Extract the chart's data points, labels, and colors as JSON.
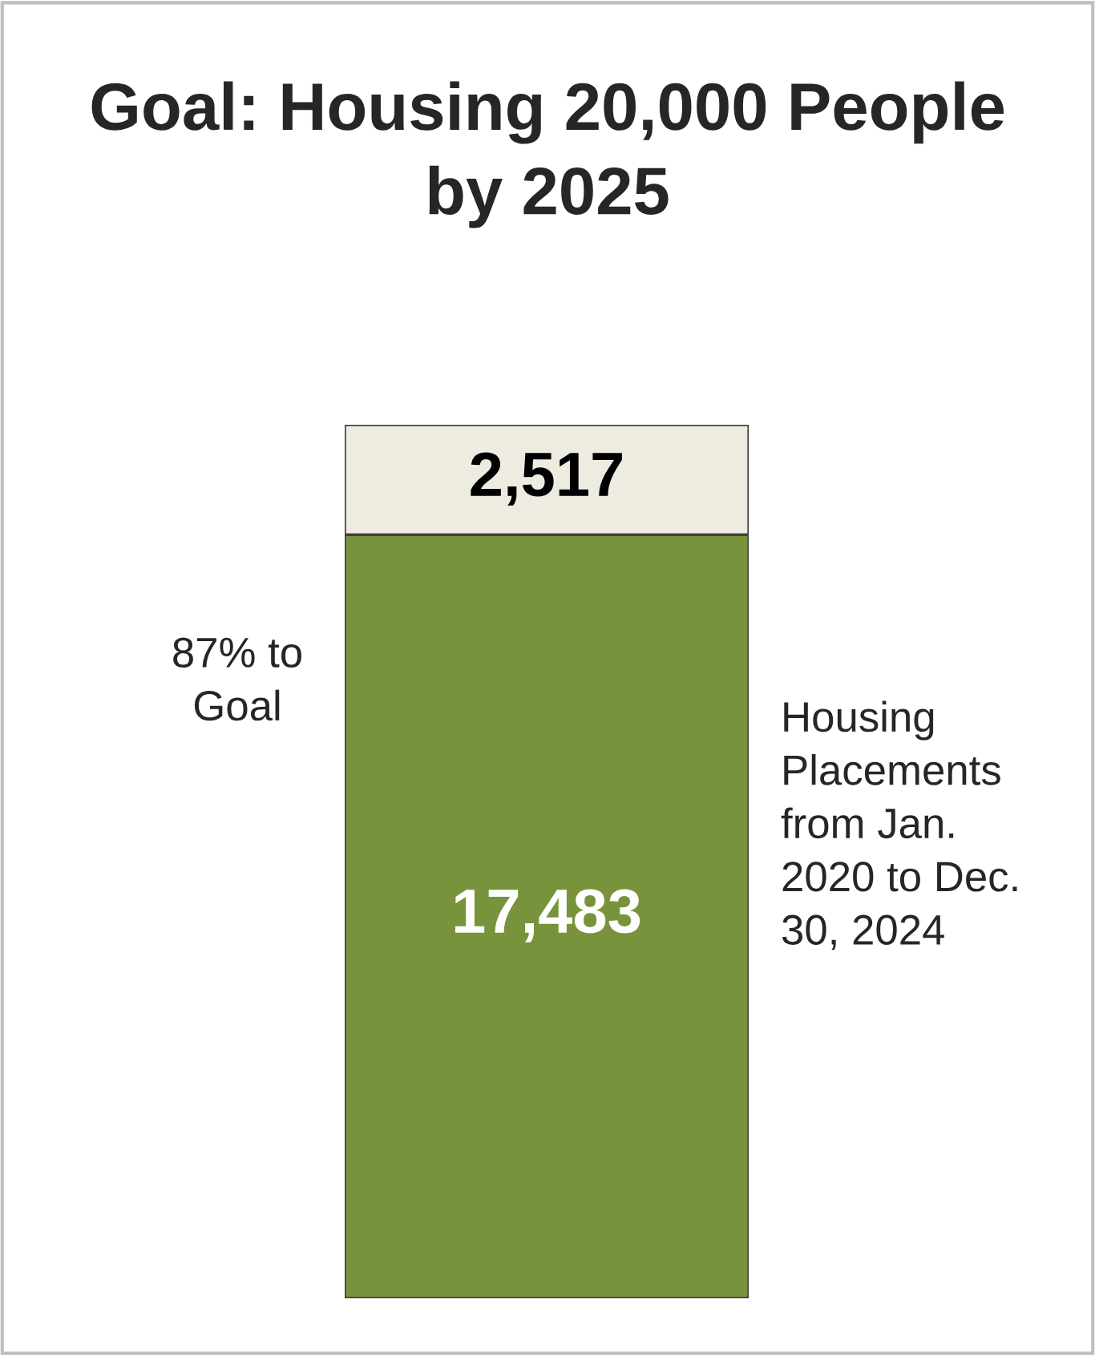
{
  "chart_data": {
    "type": "bar",
    "stacked": true,
    "title": "Goal: Housing 20,000 People by 2025",
    "categories": [
      null
    ],
    "series": [
      {
        "color": "#77933c",
        "values": [
          17483
        ],
        "value_labels": [
          "17,483"
        ]
      },
      {
        "color": "#eeece1",
        "values": [
          2517
        ],
        "value_labels": [
          "2,517"
        ]
      }
    ],
    "annotations": [
      "87% to Goal",
      "Housing Placements from Jan. 2020 to Dec. 30, 2024"
    ]
  }
}
